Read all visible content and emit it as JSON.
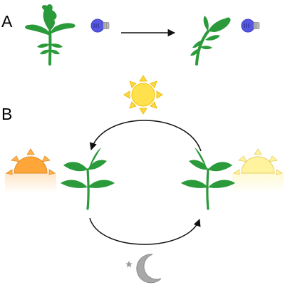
{
  "panels": [
    {
      "id": "A",
      "label": "A"
    },
    {
      "id": "B",
      "label": "B"
    }
  ],
  "colors": {
    "plant": "#2b9a3a",
    "bulb_glass": "#5557e0",
    "bulb_base": "#b9b9b9",
    "sun_noon": "#ffe14d",
    "sun_noon_rays": "#ffd83a",
    "sun_sunrise": "#ffa63a",
    "sun_sunset": "#fff3a0",
    "moon": "#a8a8a8",
    "arrow": "#111111"
  },
  "icons": {
    "bulb": "light-bulb-icon",
    "sun": "sun-icon",
    "moon": "crescent-moon-icon",
    "star": "star-icon",
    "plant": "plant-icon"
  }
}
